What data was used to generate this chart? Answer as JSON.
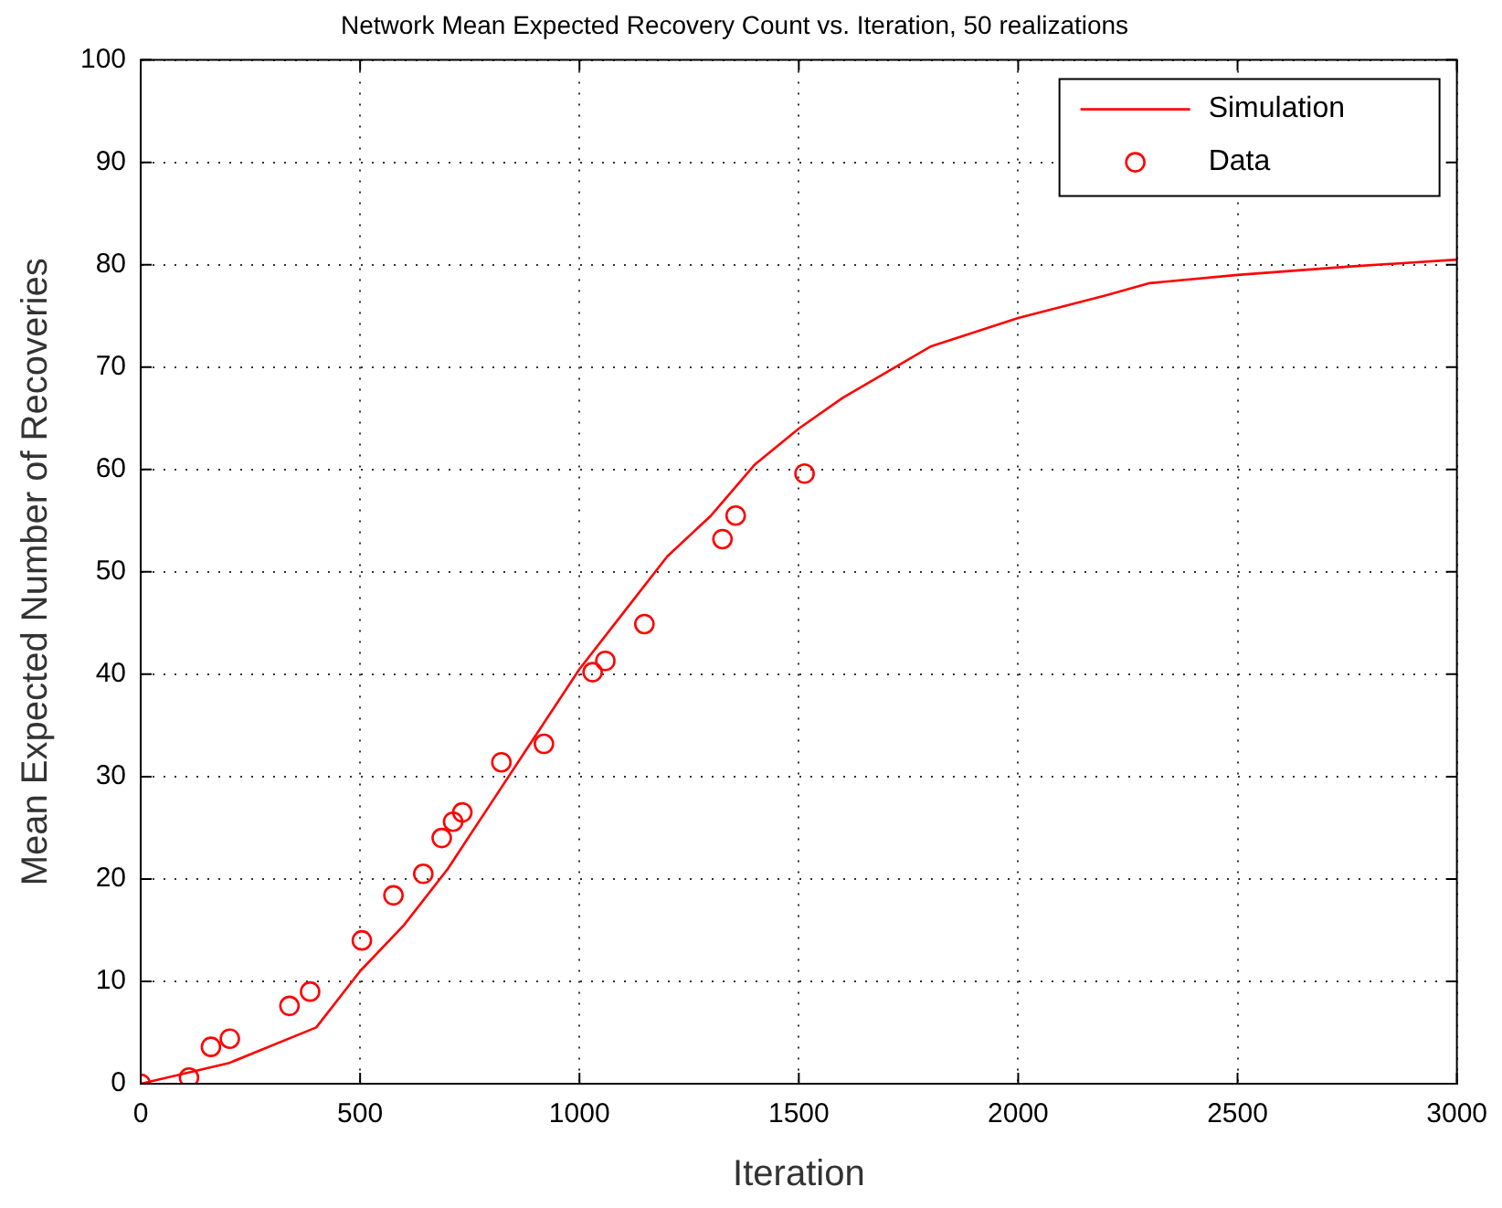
{
  "chart_data": {
    "type": "line",
    "title": "Network Mean Expected Recovery Count vs. Iteration, 50 realizations",
    "xlabel": "Iteration",
    "ylabel": "Mean Expected Number of Recoveries",
    "xlim": [
      0,
      3000
    ],
    "xticks": [
      0,
      500,
      1000,
      1500,
      2000,
      2500,
      3000
    ],
    "ylim": [
      0,
      100
    ],
    "yticks": [
      0,
      10,
      20,
      30,
      40,
      50,
      60,
      70,
      80,
      90,
      100
    ],
    "grid": true,
    "legend": "top right",
    "series": [
      {
        "name": "Simulation",
        "type": "line",
        "color": "#ff0000",
        "marker": "none",
        "x": [
          0,
          200,
          400,
          500,
          600,
          700,
          800,
          900,
          1000,
          1100,
          1200,
          1300,
          1400,
          1500,
          1600,
          1700,
          1800,
          2000,
          2200,
          2300,
          2500,
          2750,
          3000
        ],
        "values": [
          0,
          2,
          5.5,
          11,
          15.5,
          21,
          27.5,
          34,
          40.5,
          46,
          51.5,
          55.5,
          60.5,
          64,
          67,
          69.5,
          72,
          74.8,
          77,
          78.2,
          79,
          79.8,
          80.5
        ]
      },
      {
        "name": "Data",
        "type": "scatter",
        "color": "#ff0000",
        "marker": "circle",
        "x": [
          0,
          110,
          160,
          203,
          339,
          386,
          504,
          576,
          644,
          686,
          712,
          733,
          822,
          919,
          1030,
          1059,
          1148,
          1326,
          1356,
          1513
        ],
        "values": [
          0,
          0.6,
          3.6,
          4.4,
          7.6,
          9,
          14,
          18.4,
          20.5,
          24,
          25.6,
          26.5,
          31.4,
          33.2,
          40.2,
          41.3,
          44.9,
          53.2,
          55.5,
          59.6
        ]
      }
    ]
  }
}
